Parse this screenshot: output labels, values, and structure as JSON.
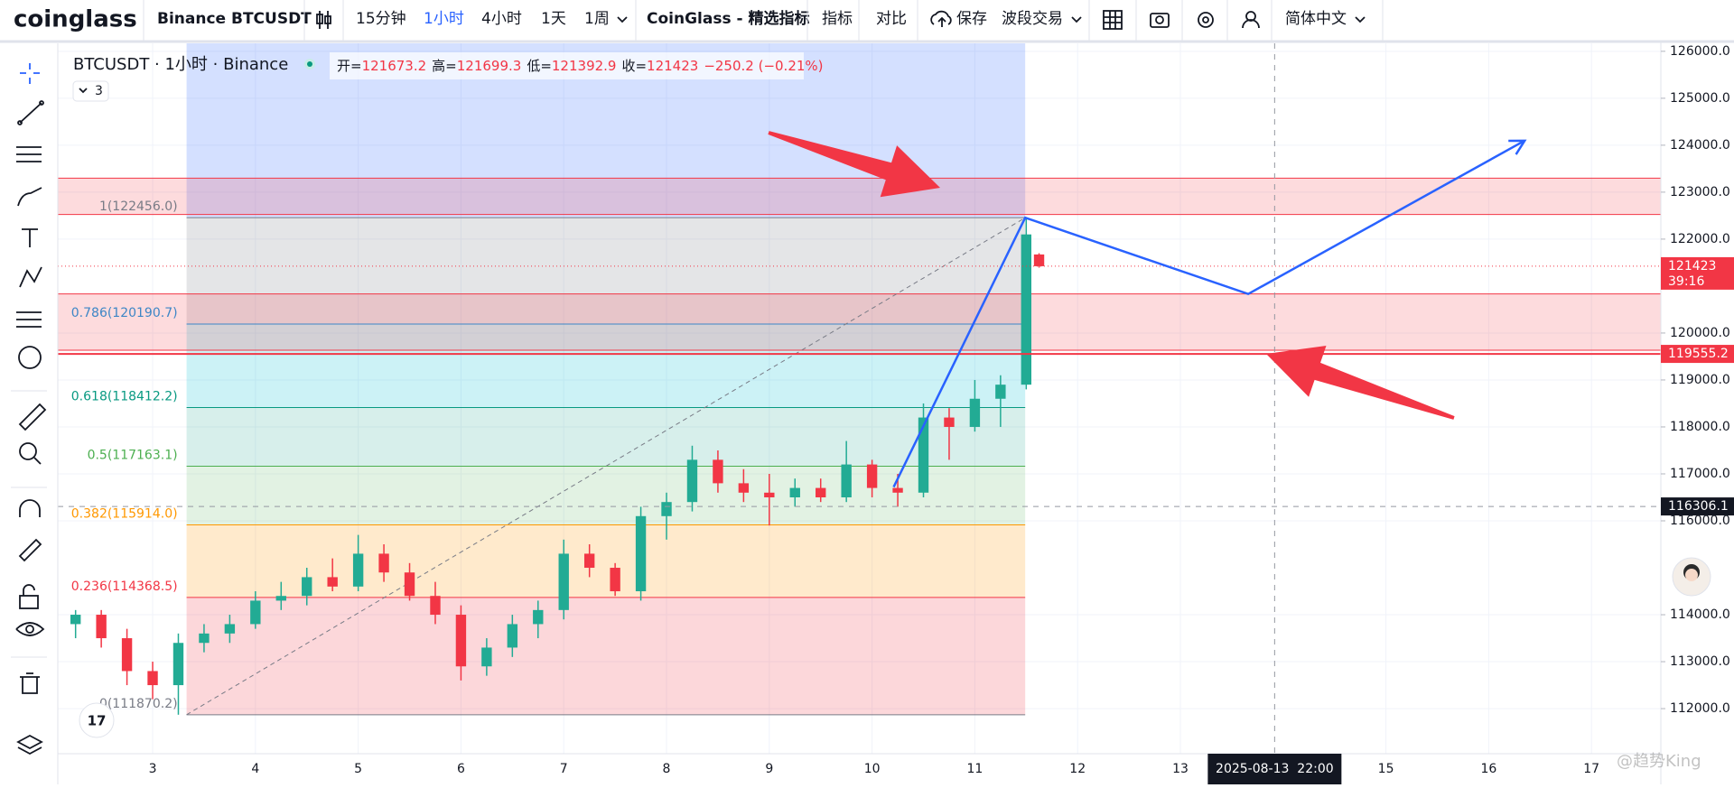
{
  "toolbar": {
    "logo": "coinglass",
    "symbol": "Binance BTCUSDT",
    "intervals": [
      "15分钟",
      "1小时",
      "4小时",
      "1天",
      "1周"
    ],
    "active_interval": 1,
    "indicators_preset": "CoinGlass - 精选指标",
    "indicators": "指标",
    "compare": "对比",
    "save": "保存",
    "layout": "波段交易",
    "language": "简体中文"
  },
  "legend": {
    "title": "BTCUSDT · 1小时 · Binance",
    "open_label": "开=",
    "high_label": "高=",
    "low_label": "低=",
    "close_label": "收=",
    "change": "−250.2 (−0.21%)",
    "collapsed_count": 3
  },
  "crosshair_time": "2025-08-13  22:00",
  "watermark": "@趋势King",
  "chart_data": {
    "type": "candlestick",
    "x": [
      2.25,
      2.5,
      2.75,
      3.0,
      3.25,
      3.5,
      3.75,
      4.0,
      4.25,
      4.5,
      4.75,
      5.0,
      5.25,
      5.5,
      5.75,
      6.0,
      6.25,
      6.5,
      6.75,
      7.0,
      7.25,
      7.5,
      7.75,
      8.0,
      8.25,
      8.5,
      8.75,
      9.0,
      9.25,
      9.5,
      9.75,
      10.0,
      10.25,
      10.5,
      10.75,
      11.0,
      11.25,
      11.5,
      11.625
    ],
    "open": [
      113800,
      114000,
      113500,
      112800,
      112500,
      113400,
      113600,
      113800,
      114300,
      114400,
      114800,
      114600,
      115300,
      114900,
      114400,
      114000,
      112900,
      113300,
      113800,
      114100,
      115300,
      115000,
      114500,
      116100,
      116400,
      117300,
      116800,
      116600,
      116500,
      116700,
      116500,
      117200,
      116700,
      116600,
      118200,
      118000,
      118600,
      118900,
      121673.2
    ],
    "high": [
      114100,
      114100,
      113700,
      113000,
      113600,
      113800,
      114000,
      114500,
      114700,
      115000,
      115200,
      115700,
      115500,
      115100,
      114700,
      114200,
      113500,
      114000,
      114300,
      115600,
      115500,
      115100,
      116300,
      116600,
      117600,
      117500,
      117100,
      117000,
      116900,
      116900,
      117700,
      117300,
      117000,
      118500,
      118400,
      119000,
      119100,
      122456,
      121699.3
    ],
    "low": [
      113500,
      113300,
      112500,
      112200,
      111870.2,
      113200,
      113400,
      113700,
      114100,
      114200,
      114500,
      114500,
      114700,
      114300,
      113800,
      112600,
      112700,
      113100,
      113500,
      113900,
      114800,
      114400,
      114300,
      115600,
      116200,
      116600,
      116400,
      115900,
      116300,
      116400,
      116400,
      116500,
      116300,
      116500,
      117300,
      117900,
      118000,
      118800,
      121392.9
    ],
    "close": [
      114000,
      113500,
      112800,
      112500,
      113400,
      113600,
      113800,
      114300,
      114400,
      114800,
      114600,
      115300,
      114900,
      114400,
      114000,
      112900,
      113300,
      113800,
      114100,
      115300,
      115000,
      114500,
      116100,
      116400,
      117300,
      116800,
      116600,
      116500,
      116700,
      116500,
      117200,
      116700,
      116600,
      118200,
      118000,
      118600,
      118900,
      122100,
      121423.0
    ],
    "up_color": "#22ab94",
    "down_color": "#f23645",
    "xlim": [
      2.077,
      17.675
    ],
    "ylim": [
      111040,
      126170
    ],
    "xticks": [
      3,
      4,
      5,
      6,
      7,
      8,
      9,
      10,
      11,
      12,
      13,
      15,
      16,
      17
    ],
    "yticks": [
      {
        "value": 112000,
        "label": "112000.0"
      },
      {
        "value": 113000,
        "label": "113000.0"
      },
      {
        "value": 114000,
        "label": "114000.0"
      },
      {
        "value": 116000,
        "label": "116000.0"
      },
      {
        "value": 117000,
        "label": "117000.0"
      },
      {
        "value": 118000,
        "label": "118000.0"
      },
      {
        "value": 119000,
        "label": "119000.0"
      },
      {
        "value": 120000,
        "label": "120000.0"
      },
      {
        "value": 122000,
        "label": "122000.0"
      },
      {
        "value": 123000,
        "label": "123000.0"
      },
      {
        "value": 124000,
        "label": "124000.0"
      },
      {
        "value": 125000,
        "label": "125000.0"
      },
      {
        "value": 126000,
        "label": "126000.0"
      }
    ],
    "grid": true,
    "fib": {
      "x": [
        3.33,
        11.49
      ],
      "top_fill": "rgba(41,98,255,0.2)",
      "levels": [
        {
          "label": "1(122456.0)",
          "price": 122456.0,
          "color": "#787b86",
          "fill": "rgba(120,123,134,0.2)"
        },
        {
          "label": "0.786(120190.7)",
          "price": 120190.7,
          "color": "#3d86c6",
          "fill": "rgba(0,188,212,0.2)"
        },
        {
          "label": "0.618(118412.2)",
          "price": 118412.2,
          "color": "#089981",
          "fill": "rgba(8,153,129,0.16)"
        },
        {
          "label": "0.5(117163.1)",
          "price": 117163.1,
          "color": "#4caf50",
          "fill": "rgba(76,175,80,0.16)"
        },
        {
          "label": "0.382(115914.0)",
          "price": 115914.0,
          "color": "#ff9800",
          "fill": "rgba(255,152,0,0.2)"
        },
        {
          "label": "0.236(114368.5)",
          "price": 114368.5,
          "color": "#f23645",
          "fill": "rgba(242,54,69,0.2)"
        },
        {
          "label": "0(111870.2)",
          "price": 111870.2,
          "color": "#787b86"
        }
      ]
    },
    "zones": [
      {
        "from": 122524,
        "to": 123298,
        "color": "rgba(242,54,69,0.18)",
        "line": "#f23645"
      },
      {
        "from": 119634,
        "to": 120832,
        "color": "rgba(242,54,69,0.18)",
        "line": "#f23645"
      }
    ],
    "price_line": {
      "price": 119555.2,
      "color": "#f23645"
    },
    "countdown": "39:16",
    "crosshair": {
      "x": 13.917,
      "price": 116306.1
    },
    "trend": {
      "x": [
        10.21,
        11.49,
        13.66,
        16.35
      ],
      "y": [
        116720,
        122456,
        120832,
        124097
      ],
      "color": "#2962ff"
    }
  }
}
